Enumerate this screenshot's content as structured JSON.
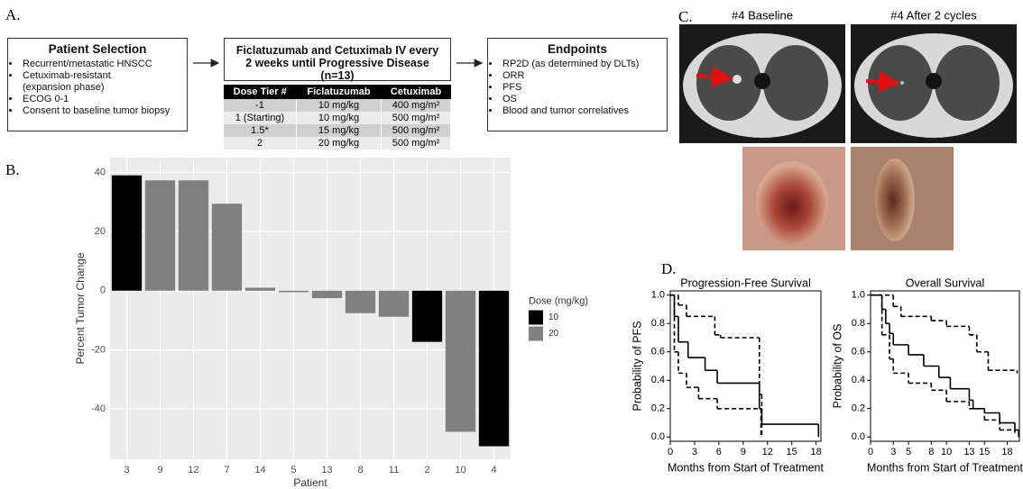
{
  "panel_labels": [
    "A.",
    "B.",
    "C.",
    "D."
  ],
  "patient_selection": {
    "title": "Patient Selection",
    "items": [
      "Recurrent/metastatic HNSCC",
      "Cetuximab-resistant (expansion phase)",
      "ECOG 0-1",
      "Consent to baseline tumor biopsy"
    ]
  },
  "treatment": {
    "title": "Ficlatuzumab and Cetuximab IV every 2 weeks until Progressive Disease (n=13)"
  },
  "endpoints": {
    "title": "Endpoints",
    "items": [
      "RP2D (as determined by DLTs)",
      "ORR",
      "PFS",
      "OS",
      "Blood and tumor correlatives"
    ]
  },
  "dose_table": {
    "header": [
      "Dose Tier #",
      "Ficlatuzumab",
      "Cetuximab"
    ],
    "rows": [
      [
        "-1",
        "10 mg/kg",
        "400 mg/m²"
      ],
      [
        "1 (Starting)",
        "10 mg/kg",
        "500 mg/m²"
      ],
      [
        "1.5*",
        "15 mg/kg",
        "500 mg/m²"
      ],
      [
        "2",
        "20 mg/kg",
        "500 mg/m²"
      ]
    ]
  },
  "images": {
    "captions": [
      "#4 Baseline",
      "#4 After 2 cycles"
    ]
  },
  "chart_data": [
    {
      "type": "bar",
      "ylabel": "Percent Tumor Change",
      "xlabel": "Patient",
      "categories": [
        "3",
        "9",
        "12",
        "7",
        "14",
        "5",
        "13",
        "8",
        "11",
        "2",
        "10",
        "4"
      ],
      "legend_title": "Dose (mg/kg)",
      "legend": "right",
      "series": [
        {
          "name": "10",
          "color": "#000000",
          "values": [
            39,
            null,
            null,
            null,
            null,
            null,
            null,
            null,
            null,
            -17.3,
            null,
            -52.6
          ]
        },
        {
          "name": "20",
          "color": "#808080",
          "values": [
            null,
            37.3,
            37.3,
            29.4,
            1,
            -0.5,
            -2.5,
            -7.6,
            -8.8,
            null,
            -47.7,
            null
          ]
        }
      ],
      "ylim": [
        -57,
        45
      ],
      "yticks": [
        -40,
        -20,
        0,
        20,
        40
      ],
      "grid": true
    },
    {
      "type": "step",
      "title": "Progression-Free Survival",
      "ylabel": "Probability of PFS",
      "xlabel": "Months from Start of Treatment",
      "xlim": [
        0,
        18.6
      ],
      "xticks": [
        0,
        3,
        6,
        9,
        12,
        15,
        18
      ],
      "ylim": [
        -0.03,
        1.03
      ],
      "yticks": [
        {
          "value": 0,
          "label": "0.0"
        },
        0.2,
        0.4,
        0.6,
        0.8,
        {
          "value": 1,
          "label": "1.0"
        }
      ],
      "series": [
        {
          "color": "#000000",
          "dashed": false,
          "x": [
            0,
            0.5,
            1,
            2.2,
            4.3,
            5.8,
            11,
            11.3,
            18.3
          ],
          "values": [
            1,
            0.85,
            0.67,
            0.56,
            0.47,
            0.38,
            0.2,
            0.09,
            0
          ]
        },
        {
          "color": "#000000",
          "dashed": true,
          "x": [
            0,
            1,
            2,
            5.5,
            6.2,
            11,
            11.3
          ],
          "values": [
            1,
            0.93,
            0.85,
            0.72,
            0.7,
            0.3,
            0
          ]
        },
        {
          "color": "#000000",
          "dashed": true,
          "x": [
            0,
            0.5,
            1,
            2,
            3.5,
            5.8,
            11.2
          ],
          "values": [
            1,
            0.6,
            0.45,
            0.35,
            0.27,
            0.2,
            0
          ]
        }
      ]
    },
    {
      "type": "step",
      "title": "Overall Survival",
      "ylabel": "Probability of OS",
      "xlabel": "Months from Start of Treatment",
      "xlim": [
        0,
        19.6
      ],
      "xticks": [
        0,
        3,
        5,
        8,
        10,
        13,
        15,
        18
      ],
      "ylim": [
        -0.03,
        1.03
      ],
      "yticks": [
        {
          "value": 0,
          "label": "0.0"
        },
        0.2,
        0.4,
        0.6,
        0.8,
        {
          "value": 1,
          "label": "1.0"
        }
      ],
      "series": [
        {
          "color": "#000000",
          "dashed": false,
          "x": [
            0,
            1.5,
            2,
            2.5,
            3,
            5,
            7,
            9,
            10.5,
            13,
            13.5,
            15,
            17,
            19,
            19.5
          ],
          "values": [
            1,
            0.9,
            0.8,
            0.73,
            0.65,
            0.58,
            0.5,
            0.42,
            0.34,
            0.26,
            0.2,
            0.17,
            0.1,
            0.05,
            0
          ]
        },
        {
          "color": "#000000",
          "dashed": true,
          "x": [
            0,
            3,
            4,
            8,
            10,
            13,
            14,
            15.5,
            19.3
          ],
          "values": [
            1,
            0.92,
            0.85,
            0.82,
            0.78,
            0.72,
            0.6,
            0.47,
            0.45
          ]
        },
        {
          "color": "#000000",
          "dashed": true,
          "x": [
            0,
            1.5,
            2.5,
            3,
            5,
            8,
            10,
            13,
            15,
            17,
            19
          ],
          "values": [
            1,
            0.72,
            0.55,
            0.45,
            0.38,
            0.33,
            0.25,
            0.2,
            0.12,
            0.05,
            0.03
          ]
        }
      ]
    }
  ]
}
